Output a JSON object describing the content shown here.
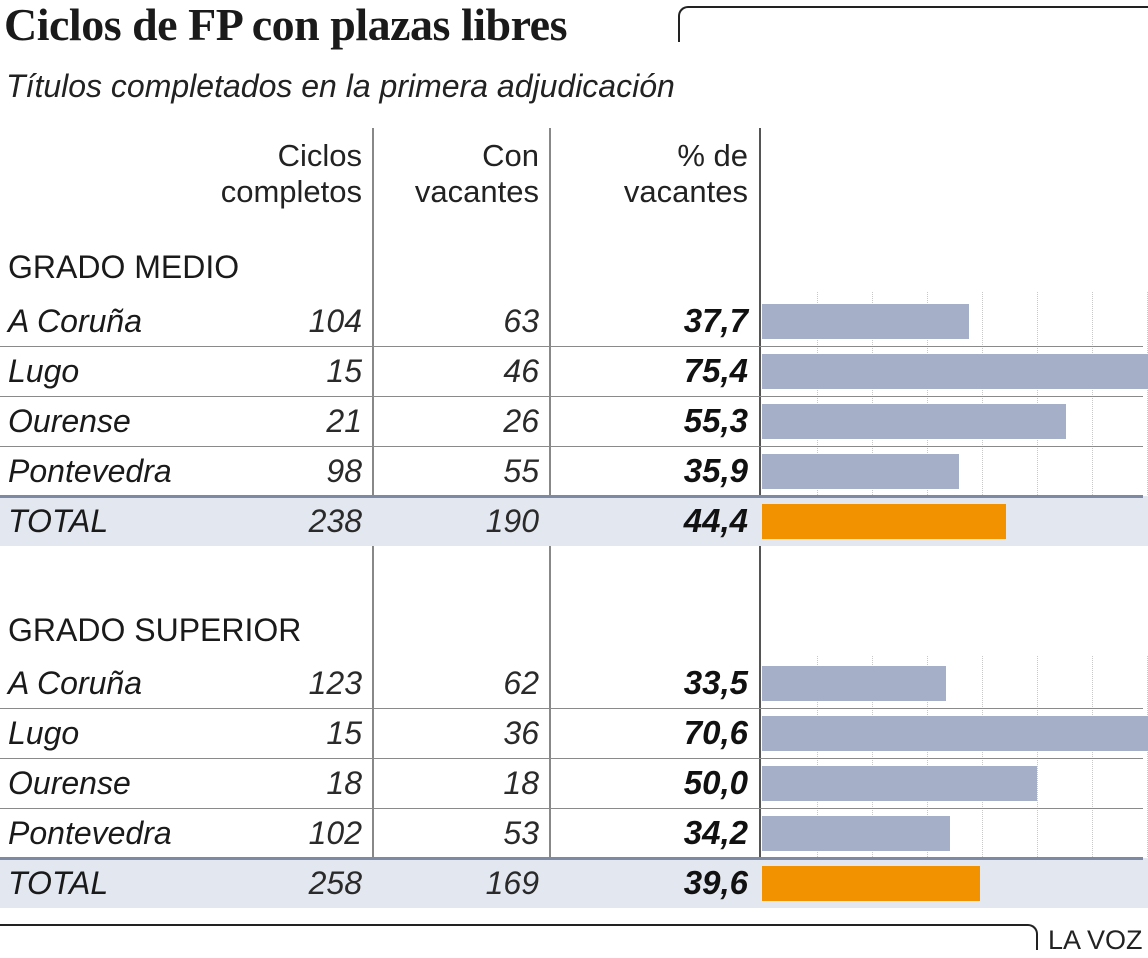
{
  "title": "Ciclos de FP con plazas libres",
  "subtitle": "Títulos completados en la primera adjudicación",
  "columns": {
    "c1_line1": "Ciclos",
    "c1_line2": "completos",
    "c2_line1": "Con",
    "c2_line2": "vacantes",
    "c3_line1": "% de",
    "c3_line2": "vacantes"
  },
  "credit": "LA VOZ",
  "colors": {
    "bar": "#a5b0c8",
    "total_bar": "#f39200",
    "total_row_bg": "#e3e7ef"
  },
  "chart_data": {
    "type": "table",
    "xlim": [
      0,
      80
    ],
    "columns": [
      "Ciclos completos",
      "Con vacantes",
      "% de vacantes"
    ],
    "groups": [
      {
        "label": "GRADO MEDIO",
        "rows": [
          {
            "name": "A Coruña",
            "completos": "104",
            "vacantes": "63",
            "pct": "37,7",
            "value": 37.7
          },
          {
            "name": "Lugo",
            "completos": "15",
            "vacantes": "46",
            "pct": "75,4",
            "value": 75.4
          },
          {
            "name": "Ourense",
            "completos": "21",
            "vacantes": "26",
            "pct": "55,3",
            "value": 55.3
          },
          {
            "name": "Pontevedra",
            "completos": "98",
            "vacantes": "55",
            "pct": "35,9",
            "value": 35.9
          }
        ],
        "total": {
          "name": "TOTAL",
          "completos": "238",
          "vacantes": "190",
          "pct": "44,4",
          "value": 44.4
        }
      },
      {
        "label": "GRADO SUPERIOR",
        "rows": [
          {
            "name": "A Coruña",
            "completos": "123",
            "vacantes": "62",
            "pct": "33,5",
            "value": 33.5
          },
          {
            "name": "Lugo",
            "completos": "15",
            "vacantes": "36",
            "pct": "70,6",
            "value": 70.6
          },
          {
            "name": "Ourense",
            "completos": "18",
            "vacantes": "18",
            "pct": "50,0",
            "value": 50.0
          },
          {
            "name": "Pontevedra",
            "completos": "102",
            "vacantes": "53",
            "pct": "34,2",
            "value": 34.2
          }
        ],
        "total": {
          "name": "TOTAL",
          "completos": "258",
          "vacantes": "169",
          "pct": "39,6",
          "value": 39.6
        }
      }
    ]
  }
}
